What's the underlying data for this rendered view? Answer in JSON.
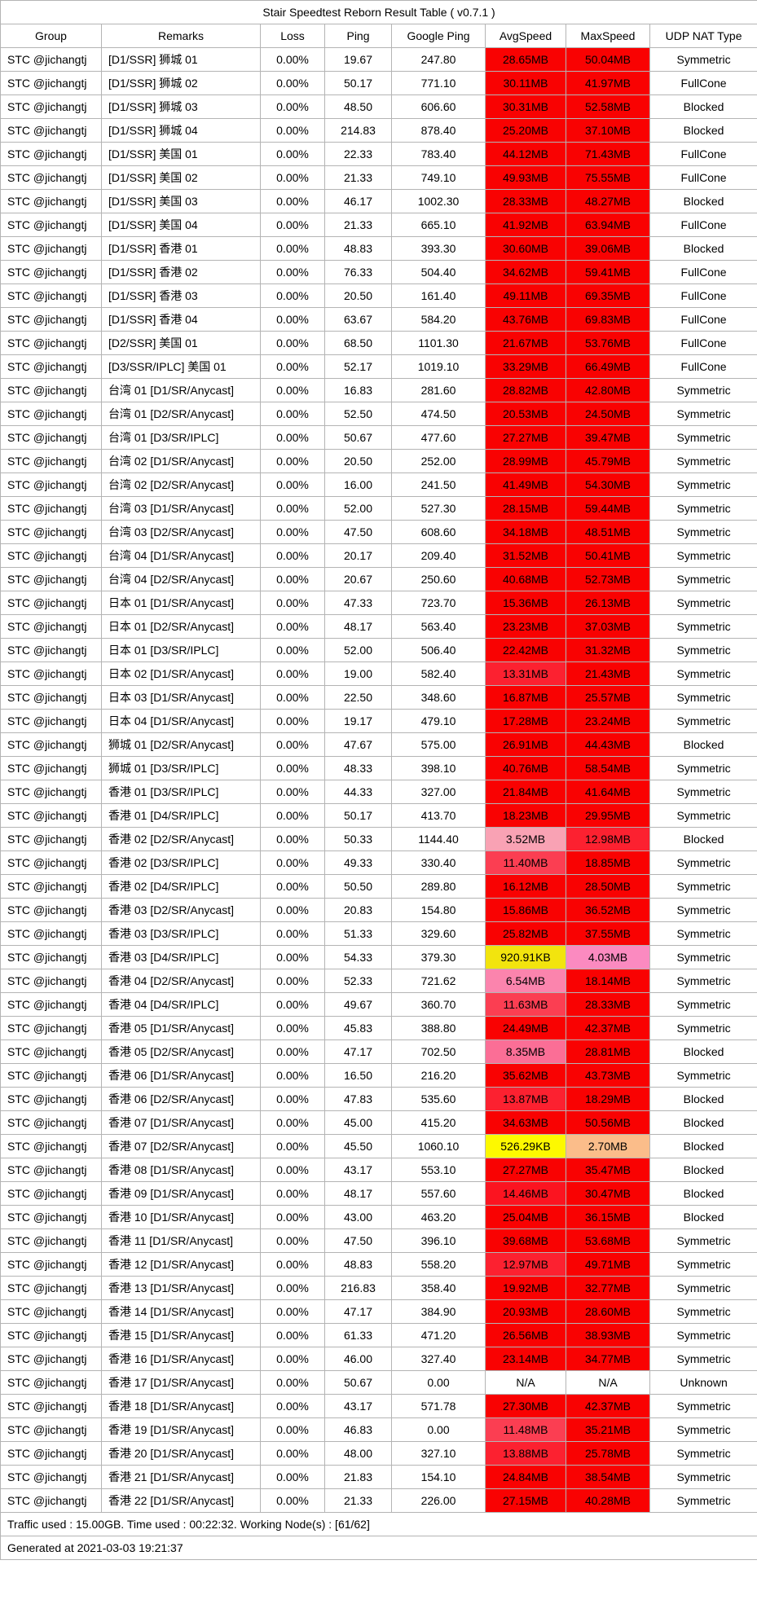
{
  "title": "Stair Speedtest Reborn Result Table ( v0.7.1 )",
  "columns": [
    "Group",
    "Remarks",
    "Loss",
    "Ping",
    "Google Ping",
    "AvgSpeed",
    "MaxSpeed",
    "UDP NAT Type"
  ],
  "speed_colors": {
    "r": "#f90202",
    "r14": "#fb1420",
    "r13": "#fc2130",
    "r11": "#fb3e52",
    "rose": "#fb6e96",
    "pk6": "#fb84ad",
    "pk4": "#fb8ac0",
    "lp": "#f9a2b4",
    "peach": "#fbbd8a",
    "y9": "#f2e40e",
    "y5": "#fdf900",
    "w": "#ffffff"
  },
  "rows": [
    [
      "STC @jichangtj",
      "[D1/SSR] 狮城 01",
      "0.00%",
      "19.67",
      "247.80",
      "28.65MB",
      "r",
      "50.04MB",
      "r",
      "Symmetric"
    ],
    [
      "STC @jichangtj",
      "[D1/SSR] 狮城 02",
      "0.00%",
      "50.17",
      "771.10",
      "30.11MB",
      "r",
      "41.97MB",
      "r",
      "FullCone"
    ],
    [
      "STC @jichangtj",
      "[D1/SSR] 狮城 03",
      "0.00%",
      "48.50",
      "606.60",
      "30.31MB",
      "r",
      "52.58MB",
      "r",
      "Blocked"
    ],
    [
      "STC @jichangtj",
      "[D1/SSR] 狮城 04",
      "0.00%",
      "214.83",
      "878.40",
      "25.20MB",
      "r",
      "37.10MB",
      "r",
      "Blocked"
    ],
    [
      "STC @jichangtj",
      "[D1/SSR] 美国 01",
      "0.00%",
      "22.33",
      "783.40",
      "44.12MB",
      "r",
      "71.43MB",
      "r",
      "FullCone"
    ],
    [
      "STC @jichangtj",
      "[D1/SSR] 美国 02",
      "0.00%",
      "21.33",
      "749.10",
      "49.93MB",
      "r",
      "75.55MB",
      "r",
      "FullCone"
    ],
    [
      "STC @jichangtj",
      "[D1/SSR] 美国 03",
      "0.00%",
      "46.17",
      "1002.30",
      "28.33MB",
      "r",
      "48.27MB",
      "r",
      "Blocked"
    ],
    [
      "STC @jichangtj",
      "[D1/SSR] 美国 04",
      "0.00%",
      "21.33",
      "665.10",
      "41.92MB",
      "r",
      "63.94MB",
      "r",
      "FullCone"
    ],
    [
      "STC @jichangtj",
      "[D1/SSR] 香港 01",
      "0.00%",
      "48.83",
      "393.30",
      "30.60MB",
      "r",
      "39.06MB",
      "r",
      "Blocked"
    ],
    [
      "STC @jichangtj",
      "[D1/SSR] 香港 02",
      "0.00%",
      "76.33",
      "504.40",
      "34.62MB",
      "r",
      "59.41MB",
      "r",
      "FullCone"
    ],
    [
      "STC @jichangtj",
      "[D1/SSR] 香港 03",
      "0.00%",
      "20.50",
      "161.40",
      "49.11MB",
      "r",
      "69.35MB",
      "r",
      "FullCone"
    ],
    [
      "STC @jichangtj",
      "[D1/SSR] 香港 04",
      "0.00%",
      "63.67",
      "584.20",
      "43.76MB",
      "r",
      "69.83MB",
      "r",
      "FullCone"
    ],
    [
      "STC @jichangtj",
      "[D2/SSR] 美国 01",
      "0.00%",
      "68.50",
      "1101.30",
      "21.67MB",
      "r",
      "53.76MB",
      "r",
      "FullCone"
    ],
    [
      "STC @jichangtj",
      "[D3/SSR/IPLC] 美国 01",
      "0.00%",
      "52.17",
      "1019.10",
      "33.29MB",
      "r",
      "66.49MB",
      "r",
      "FullCone"
    ],
    [
      "STC @jichangtj",
      "台湾 01 [D1/SR/Anycast]",
      "0.00%",
      "16.83",
      "281.60",
      "28.82MB",
      "r",
      "42.80MB",
      "r",
      "Symmetric"
    ],
    [
      "STC @jichangtj",
      "台湾 01 [D2/SR/Anycast]",
      "0.00%",
      "52.50",
      "474.50",
      "20.53MB",
      "r",
      "24.50MB",
      "r",
      "Symmetric"
    ],
    [
      "STC @jichangtj",
      "台湾 01 [D3/SR/IPLC]",
      "0.00%",
      "50.67",
      "477.60",
      "27.27MB",
      "r",
      "39.47MB",
      "r",
      "Symmetric"
    ],
    [
      "STC @jichangtj",
      "台湾 02 [D1/SR/Anycast]",
      "0.00%",
      "20.50",
      "252.00",
      "28.99MB",
      "r",
      "45.79MB",
      "r",
      "Symmetric"
    ],
    [
      "STC @jichangtj",
      "台湾 02 [D2/SR/Anycast]",
      "0.00%",
      "16.00",
      "241.50",
      "41.49MB",
      "r",
      "54.30MB",
      "r",
      "Symmetric"
    ],
    [
      "STC @jichangtj",
      "台湾 03 [D1/SR/Anycast]",
      "0.00%",
      "52.00",
      "527.30",
      "28.15MB",
      "r",
      "59.44MB",
      "r",
      "Symmetric"
    ],
    [
      "STC @jichangtj",
      "台湾 03 [D2/SR/Anycast]",
      "0.00%",
      "47.50",
      "608.60",
      "34.18MB",
      "r",
      "48.51MB",
      "r",
      "Symmetric"
    ],
    [
      "STC @jichangtj",
      "台湾 04 [D1/SR/Anycast]",
      "0.00%",
      "20.17",
      "209.40",
      "31.52MB",
      "r",
      "50.41MB",
      "r",
      "Symmetric"
    ],
    [
      "STC @jichangtj",
      "台湾 04 [D2/SR/Anycast]",
      "0.00%",
      "20.67",
      "250.60",
      "40.68MB",
      "r",
      "52.73MB",
      "r",
      "Symmetric"
    ],
    [
      "STC @jichangtj",
      "日本 01 [D1/SR/Anycast]",
      "0.00%",
      "47.33",
      "723.70",
      "15.36MB",
      "r",
      "26.13MB",
      "r",
      "Symmetric"
    ],
    [
      "STC @jichangtj",
      "日本 01 [D2/SR/Anycast]",
      "0.00%",
      "48.17",
      "563.40",
      "23.23MB",
      "r",
      "37.03MB",
      "r",
      "Symmetric"
    ],
    [
      "STC @jichangtj",
      "日本 01 [D3/SR/IPLC]",
      "0.00%",
      "52.00",
      "506.40",
      "22.42MB",
      "r",
      "31.32MB",
      "r",
      "Symmetric"
    ],
    [
      "STC @jichangtj",
      "日本 02 [D1/SR/Anycast]",
      "0.00%",
      "19.00",
      "582.40",
      "13.31MB",
      "r13",
      "21.43MB",
      "r",
      "Symmetric"
    ],
    [
      "STC @jichangtj",
      "日本 03 [D1/SR/Anycast]",
      "0.00%",
      "22.50",
      "348.60",
      "16.87MB",
      "r",
      "25.57MB",
      "r",
      "Symmetric"
    ],
    [
      "STC @jichangtj",
      "日本 04 [D1/SR/Anycast]",
      "0.00%",
      "19.17",
      "479.10",
      "17.28MB",
      "r",
      "23.24MB",
      "r",
      "Symmetric"
    ],
    [
      "STC @jichangtj",
      "狮城 01 [D2/SR/Anycast]",
      "0.00%",
      "47.67",
      "575.00",
      "26.91MB",
      "r",
      "44.43MB",
      "r",
      "Blocked"
    ],
    [
      "STC @jichangtj",
      "狮城 01 [D3/SR/IPLC]",
      "0.00%",
      "48.33",
      "398.10",
      "40.76MB",
      "r",
      "58.54MB",
      "r",
      "Symmetric"
    ],
    [
      "STC @jichangtj",
      "香港 01 [D3/SR/IPLC]",
      "0.00%",
      "44.33",
      "327.00",
      "21.84MB",
      "r",
      "41.64MB",
      "r",
      "Symmetric"
    ],
    [
      "STC @jichangtj",
      "香港 01 [D4/SR/IPLC]",
      "0.00%",
      "50.17",
      "413.70",
      "18.23MB",
      "r",
      "29.95MB",
      "r",
      "Symmetric"
    ],
    [
      "STC @jichangtj",
      "香港 02 [D2/SR/Anycast]",
      "0.00%",
      "50.33",
      "1144.40",
      "3.52MB",
      "lp",
      "12.98MB",
      "r13",
      "Blocked"
    ],
    [
      "STC @jichangtj",
      "香港 02 [D3/SR/IPLC]",
      "0.00%",
      "49.33",
      "330.40",
      "11.40MB",
      "r11",
      "18.85MB",
      "r",
      "Symmetric"
    ],
    [
      "STC @jichangtj",
      "香港 02 [D4/SR/IPLC]",
      "0.00%",
      "50.50",
      "289.80",
      "16.12MB",
      "r",
      "28.50MB",
      "r",
      "Symmetric"
    ],
    [
      "STC @jichangtj",
      "香港 03 [D2/SR/Anycast]",
      "0.00%",
      "20.83",
      "154.80",
      "15.86MB",
      "r",
      "36.52MB",
      "r",
      "Symmetric"
    ],
    [
      "STC @jichangtj",
      "香港 03 [D3/SR/IPLC]",
      "0.00%",
      "51.33",
      "329.60",
      "25.82MB",
      "r",
      "37.55MB",
      "r",
      "Symmetric"
    ],
    [
      "STC @jichangtj",
      "香港 03 [D4/SR/IPLC]",
      "0.00%",
      "54.33",
      "379.30",
      "920.91KB",
      "y9",
      "4.03MB",
      "pk4",
      "Symmetric"
    ],
    [
      "STC @jichangtj",
      "香港 04 [D2/SR/Anycast]",
      "0.00%",
      "52.33",
      "721.62",
      "6.54MB",
      "pk6",
      "18.14MB",
      "r",
      "Symmetric"
    ],
    [
      "STC @jichangtj",
      "香港 04 [D4/SR/IPLC]",
      "0.00%",
      "49.67",
      "360.70",
      "11.63MB",
      "r11",
      "28.33MB",
      "r",
      "Symmetric"
    ],
    [
      "STC @jichangtj",
      "香港 05 [D1/SR/Anycast]",
      "0.00%",
      "45.83",
      "388.80",
      "24.49MB",
      "r",
      "42.37MB",
      "r",
      "Symmetric"
    ],
    [
      "STC @jichangtj",
      "香港 05 [D2/SR/Anycast]",
      "0.00%",
      "47.17",
      "702.50",
      "8.35MB",
      "rose",
      "28.81MB",
      "r",
      "Blocked"
    ],
    [
      "STC @jichangtj",
      "香港 06 [D1/SR/Anycast]",
      "0.00%",
      "16.50",
      "216.20",
      "35.62MB",
      "r",
      "43.73MB",
      "r",
      "Symmetric"
    ],
    [
      "STC @jichangtj",
      "香港 06 [D2/SR/Anycast]",
      "0.00%",
      "47.83",
      "535.60",
      "13.87MB",
      "r13",
      "18.29MB",
      "r",
      "Blocked"
    ],
    [
      "STC @jichangtj",
      "香港 07 [D1/SR/Anycast]",
      "0.00%",
      "45.00",
      "415.20",
      "34.63MB",
      "r",
      "50.56MB",
      "r",
      "Blocked"
    ],
    [
      "STC @jichangtj",
      "香港 07 [D2/SR/Anycast]",
      "0.00%",
      "45.50",
      "1060.10",
      "526.29KB",
      "y5",
      "2.70MB",
      "peach",
      "Blocked"
    ],
    [
      "STC @jichangtj",
      "香港 08 [D1/SR/Anycast]",
      "0.00%",
      "43.17",
      "553.10",
      "27.27MB",
      "r",
      "35.47MB",
      "r",
      "Blocked"
    ],
    [
      "STC @jichangtj",
      "香港 09 [D1/SR/Anycast]",
      "0.00%",
      "48.17",
      "557.60",
      "14.46MB",
      "r14",
      "30.47MB",
      "r",
      "Blocked"
    ],
    [
      "STC @jichangtj",
      "香港 10 [D1/SR/Anycast]",
      "0.00%",
      "43.00",
      "463.20",
      "25.04MB",
      "r",
      "36.15MB",
      "r",
      "Blocked"
    ],
    [
      "STC @jichangtj",
      "香港 11 [D1/SR/Anycast]",
      "0.00%",
      "47.50",
      "396.10",
      "39.68MB",
      "r",
      "53.68MB",
      "r",
      "Symmetric"
    ],
    [
      "STC @jichangtj",
      "香港 12 [D1/SR/Anycast]",
      "0.00%",
      "48.83",
      "558.20",
      "12.97MB",
      "r13",
      "49.71MB",
      "r",
      "Symmetric"
    ],
    [
      "STC @jichangtj",
      "香港 13 [D1/SR/Anycast]",
      "0.00%",
      "216.83",
      "358.40",
      "19.92MB",
      "r",
      "32.77MB",
      "r",
      "Symmetric"
    ],
    [
      "STC @jichangtj",
      "香港 14 [D1/SR/Anycast]",
      "0.00%",
      "47.17",
      "384.90",
      "20.93MB",
      "r",
      "28.60MB",
      "r",
      "Symmetric"
    ],
    [
      "STC @jichangtj",
      "香港 15 [D1/SR/Anycast]",
      "0.00%",
      "61.33",
      "471.20",
      "26.56MB",
      "r",
      "38.93MB",
      "r",
      "Symmetric"
    ],
    [
      "STC @jichangtj",
      "香港 16 [D1/SR/Anycast]",
      "0.00%",
      "46.00",
      "327.40",
      "23.14MB",
      "r",
      "34.77MB",
      "r",
      "Symmetric"
    ],
    [
      "STC @jichangtj",
      "香港 17 [D1/SR/Anycast]",
      "0.00%",
      "50.67",
      "0.00",
      "N/A",
      "w",
      "N/A",
      "w",
      "Unknown"
    ],
    [
      "STC @jichangtj",
      "香港 18 [D1/SR/Anycast]",
      "0.00%",
      "43.17",
      "571.78",
      "27.30MB",
      "r",
      "42.37MB",
      "r",
      "Symmetric"
    ],
    [
      "STC @jichangtj",
      "香港 19 [D1/SR/Anycast]",
      "0.00%",
      "46.83",
      "0.00",
      "11.48MB",
      "r11",
      "35.21MB",
      "r",
      "Symmetric"
    ],
    [
      "STC @jichangtj",
      "香港 20 [D1/SR/Anycast]",
      "0.00%",
      "48.00",
      "327.10",
      "13.88MB",
      "r13",
      "25.78MB",
      "r",
      "Symmetric"
    ],
    [
      "STC @jichangtj",
      "香港 21 [D1/SR/Anycast]",
      "0.00%",
      "21.83",
      "154.10",
      "24.84MB",
      "r",
      "38.54MB",
      "r",
      "Symmetric"
    ],
    [
      "STC @jichangtj",
      "香港 22 [D1/SR/Anycast]",
      "0.00%",
      "21.33",
      "226.00",
      "27.15MB",
      "r",
      "40.28MB",
      "r",
      "Symmetric"
    ]
  ],
  "footer": {
    "summary": "Traffic used : 15.00GB. Time used : 00:22:32. Working Node(s) : [61/62]",
    "generated": "Generated at 2021-03-03 19:21:37"
  }
}
